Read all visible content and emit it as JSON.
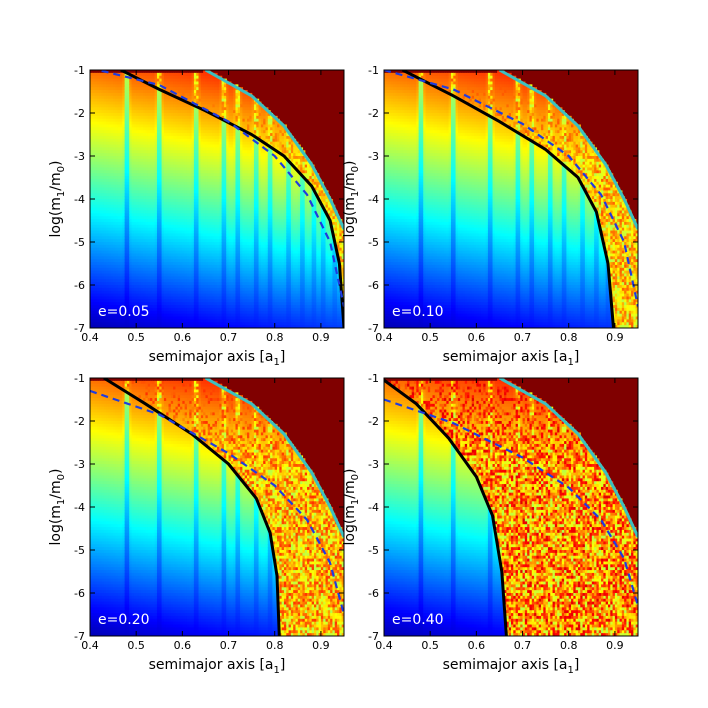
{
  "chart_data": [
    {
      "type": "heatmap",
      "panel": "top-left",
      "eccentricity_label": "e=0.05",
      "e": 0.05,
      "xlabel_main": "semimajor axis  [a",
      "xlabel_sub": "1",
      "xlabel_end": "]",
      "ylabel_main": "log(m",
      "ylabel_sub1": "1",
      "ylabel_mid": "/m",
      "ylabel_sub2": "0",
      "ylabel_end": ")",
      "xlim": [
        0.4,
        0.95
      ],
      "ylim": [
        -7,
        -1
      ],
      "xticks": [
        "0.4",
        "0.5",
        "0.6",
        "0.7",
        "0.8",
        "0.9"
      ],
      "xtick_values": [
        0.4,
        0.5,
        0.6,
        0.7,
        0.8,
        0.9
      ],
      "yticks": [
        "-7",
        "-6",
        "-5",
        "-4",
        "-3",
        "-2",
        "-1"
      ],
      "ytick_values": [
        -7,
        -6,
        -5,
        -4,
        -3,
        -2,
        -1
      ],
      "curves": [
        {
          "name": "black solid",
          "color": "#000000",
          "style": "solid",
          "x": [
            0.467,
            0.55,
            0.65,
            0.75,
            0.82,
            0.88,
            0.92,
            0.94,
            0.95
          ],
          "y": [
            -1.0,
            -1.45,
            -1.95,
            -2.5,
            -3.0,
            -3.7,
            -4.5,
            -5.5,
            -7.0
          ]
        },
        {
          "name": "blue dashed",
          "color": "#1f3ce0",
          "style": "dashed",
          "x": [
            0.4,
            0.55,
            0.7,
            0.8,
            0.87,
            0.92,
            0.95
          ],
          "y": [
            -0.95,
            -1.35,
            -2.2,
            -3.0,
            -3.9,
            -5.0,
            -6.5
          ]
        },
        {
          "name": "cyan solid",
          "color": "#3cc0c0",
          "style": "solid",
          "x": [
            0.65,
            0.75,
            0.82,
            0.88,
            0.92,
            0.95
          ],
          "y": [
            -1.0,
            -1.6,
            -2.3,
            -3.2,
            -4.0,
            -4.7
          ]
        }
      ]
    },
    {
      "type": "heatmap",
      "panel": "top-right",
      "eccentricity_label": "e=0.10",
      "e": 0.1,
      "xlabel_main": "semimajor axis  [a",
      "xlabel_sub": "1",
      "xlabel_end": "]",
      "ylabel_main": "log(m",
      "ylabel_sub1": "1",
      "ylabel_mid": "/m",
      "ylabel_sub2": "0",
      "ylabel_end": ")",
      "xlim": [
        0.4,
        0.95
      ],
      "ylim": [
        -7,
        -1
      ],
      "xticks": [
        "0.4",
        "0.5",
        "0.6",
        "0.7",
        "0.8",
        "0.9"
      ],
      "xtick_values": [
        0.4,
        0.5,
        0.6,
        0.7,
        0.8,
        0.9
      ],
      "yticks": [
        "-7",
        "-6",
        "-5",
        "-4",
        "-3",
        "-2",
        "-1"
      ],
      "ytick_values": [
        -7,
        -6,
        -5,
        -4,
        -3,
        -2,
        -1
      ],
      "curves": [
        {
          "name": "black solid",
          "color": "#000000",
          "style": "solid",
          "x": [
            0.44,
            0.55,
            0.65,
            0.75,
            0.82,
            0.86,
            0.885,
            0.897
          ],
          "y": [
            -1.0,
            -1.6,
            -2.2,
            -2.85,
            -3.5,
            -4.3,
            -5.5,
            -7.0
          ]
        },
        {
          "name": "blue dashed",
          "color": "#1f3ce0",
          "style": "dashed",
          "x": [
            0.4,
            0.55,
            0.7,
            0.8,
            0.87,
            0.92,
            0.95
          ],
          "y": [
            -1.0,
            -1.45,
            -2.25,
            -3.0,
            -3.9,
            -5.0,
            -6.5
          ]
        },
        {
          "name": "cyan solid",
          "color": "#3cc0c0",
          "style": "solid",
          "x": [
            0.65,
            0.75,
            0.82,
            0.88,
            0.92,
            0.95
          ],
          "y": [
            -1.0,
            -1.6,
            -2.3,
            -3.2,
            -4.0,
            -4.7
          ]
        }
      ]
    },
    {
      "type": "heatmap",
      "panel": "bottom-left",
      "eccentricity_label": "e=0.20",
      "e": 0.2,
      "xlabel_main": "semimajor axis  [a",
      "xlabel_sub": "1",
      "xlabel_end": "]",
      "ylabel_main": "log(m",
      "ylabel_sub1": "1",
      "ylabel_mid": "/m",
      "ylabel_sub2": "0",
      "ylabel_end": ")",
      "xlim": [
        0.4,
        0.95
      ],
      "ylim": [
        -7,
        -1
      ],
      "xticks": [
        "0.4",
        "0.5",
        "0.6",
        "0.7",
        "0.8",
        "0.9"
      ],
      "xtick_values": [
        0.4,
        0.5,
        0.6,
        0.7,
        0.8,
        0.9
      ],
      "yticks": [
        "-7",
        "-6",
        "-5",
        "-4",
        "-3",
        "-2",
        "-1"
      ],
      "ytick_values": [
        -7,
        -6,
        -5,
        -4,
        -3,
        -2,
        -1
      ],
      "curves": [
        {
          "name": "black solid",
          "color": "#000000",
          "style": "solid",
          "x": [
            0.43,
            0.52,
            0.62,
            0.7,
            0.76,
            0.79,
            0.805,
            0.81
          ],
          "y": [
            -1.0,
            -1.6,
            -2.3,
            -3.0,
            -3.8,
            -4.6,
            -5.6,
            -7.0
          ]
        },
        {
          "name": "blue dashed",
          "color": "#1f3ce0",
          "style": "dashed",
          "x": [
            0.4,
            0.55,
            0.7,
            0.8,
            0.87,
            0.92,
            0.95
          ],
          "y": [
            -1.3,
            -1.85,
            -2.75,
            -3.5,
            -4.3,
            -5.3,
            -6.5
          ]
        },
        {
          "name": "cyan solid",
          "color": "#3cc0c0",
          "style": "solid",
          "x": [
            0.65,
            0.75,
            0.82,
            0.88,
            0.92,
            0.95
          ],
          "y": [
            -1.0,
            -1.6,
            -2.3,
            -3.2,
            -4.0,
            -4.7
          ]
        }
      ]
    },
    {
      "type": "heatmap",
      "panel": "bottom-right",
      "eccentricity_label": "e=0.40",
      "e": 0.4,
      "xlabel_main": "semimajor axis  [a",
      "xlabel_sub": "1",
      "xlabel_end": "]",
      "ylabel_main": "log(m",
      "ylabel_sub1": "1",
      "ylabel_mid": "/m",
      "ylabel_sub2": "0",
      "ylabel_end": ")",
      "xlim": [
        0.4,
        0.95
      ],
      "ylim": [
        -7,
        -1
      ],
      "xticks": [
        "0.4",
        "0.5",
        "0.6",
        "0.7",
        "0.8",
        "0.9"
      ],
      "xtick_values": [
        0.4,
        0.5,
        0.6,
        0.7,
        0.8,
        0.9
      ],
      "yticks": [
        "-7",
        "-6",
        "-5",
        "-4",
        "-3",
        "-2",
        "-1"
      ],
      "ytick_values": [
        -7,
        -6,
        -5,
        -4,
        -3,
        -2,
        -1
      ],
      "curves": [
        {
          "name": "black solid",
          "color": "#000000",
          "style": "solid",
          "x": [
            0.4,
            0.47,
            0.54,
            0.6,
            0.635,
            0.655,
            0.665
          ],
          "y": [
            -1.05,
            -1.6,
            -2.4,
            -3.3,
            -4.2,
            -5.5,
            -7.0
          ]
        },
        {
          "name": "blue dashed",
          "color": "#1f3ce0",
          "style": "dashed",
          "x": [
            0.4,
            0.55,
            0.7,
            0.8,
            0.87,
            0.92,
            0.95
          ],
          "y": [
            -1.5,
            -2.05,
            -2.85,
            -3.55,
            -4.3,
            -5.2,
            -6.3
          ]
        },
        {
          "name": "cyan solid",
          "color": "#3cc0c0",
          "style": "solid",
          "x": [
            0.65,
            0.75,
            0.82,
            0.88,
            0.92,
            0.95
          ],
          "y": [
            -1.0,
            -1.6,
            -2.3,
            -3.2,
            -4.0,
            -4.7
          ]
        }
      ]
    }
  ],
  "colors": {
    "unstable": "#800000",
    "deep_stable": "#00008f",
    "cyan_curve": "#3cc0c0",
    "blue_dashed": "#1f3ce0"
  }
}
